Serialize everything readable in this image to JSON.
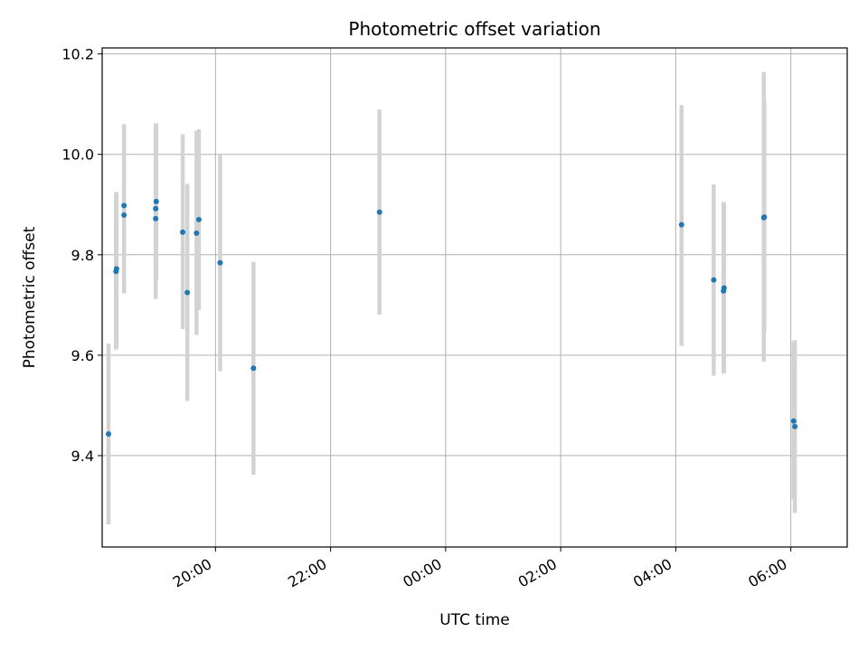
{
  "chart_data": {
    "type": "scatter",
    "title": "Photometric offset variation",
    "xlabel": "UTC time",
    "ylabel": "Photometric offset",
    "grid": true,
    "point_color": "#1f77b4",
    "errorbar_color": "#d3d3d3",
    "x_ticks": [
      {
        "t": 20.0,
        "label": "20:00"
      },
      {
        "t": 22.0,
        "label": "22:00"
      },
      {
        "t": 24.0,
        "label": "00:00"
      },
      {
        "t": 26.0,
        "label": "02:00"
      },
      {
        "t": 28.0,
        "label": "04:00"
      },
      {
        "t": 30.0,
        "label": "06:00"
      }
    ],
    "y_ticks": [
      {
        "v": 9.4,
        "label": "9.4"
      },
      {
        "v": 9.6,
        "label": "9.6"
      },
      {
        "v": 9.8,
        "label": "9.8"
      },
      {
        "v": 10.0,
        "label": "10.0"
      },
      {
        "v": 10.2,
        "label": "10.2"
      }
    ],
    "xlim": [
      18.03,
      30.98
    ],
    "ylim": [
      9.218,
      10.212
    ],
    "points": [
      {
        "t": 18.14,
        "y": 9.443,
        "lo": 9.263,
        "hi": 9.623
      },
      {
        "t": 18.27,
        "y": 9.767,
        "lo": 9.611,
        "hi": 9.924
      },
      {
        "t": 18.28,
        "y": 9.772,
        "lo": 9.615,
        "hi": 9.925
      },
      {
        "t": 18.41,
        "y": 9.879,
        "lo": 9.723,
        "hi": 10.058
      },
      {
        "t": 18.41,
        "y": 9.898,
        "lo": 9.725,
        "hi": 10.06
      },
      {
        "t": 18.96,
        "y": 9.872,
        "lo": 9.712,
        "hi": 10.061
      },
      {
        "t": 18.96,
        "y": 9.892,
        "lo": 9.75,
        "hi": 10.061
      },
      {
        "t": 18.97,
        "y": 9.906,
        "lo": 9.75,
        "hi": 10.062
      },
      {
        "t": 19.43,
        "y": 9.845,
        "lo": 9.652,
        "hi": 10.04
      },
      {
        "t": 19.51,
        "y": 9.725,
        "lo": 9.509,
        "hi": 9.941
      },
      {
        "t": 19.67,
        "y": 9.843,
        "lo": 9.64,
        "hi": 10.047
      },
      {
        "t": 19.71,
        "y": 9.87,
        "lo": 9.69,
        "hi": 10.05
      },
      {
        "t": 20.08,
        "y": 9.784,
        "lo": 9.568,
        "hi": 10.0
      },
      {
        "t": 20.66,
        "y": 9.574,
        "lo": 9.362,
        "hi": 9.786
      },
      {
        "t": 22.85,
        "y": 9.885,
        "lo": 9.681,
        "hi": 10.089
      },
      {
        "t": 28.1,
        "y": 9.86,
        "lo": 9.619,
        "hi": 10.098
      },
      {
        "t": 28.66,
        "y": 9.75,
        "lo": 9.559,
        "hi": 9.94
      },
      {
        "t": 28.83,
        "y": 9.728,
        "lo": 9.563,
        "hi": 9.905
      },
      {
        "t": 28.84,
        "y": 9.734,
        "lo": 9.565,
        "hi": 9.903
      },
      {
        "t": 29.53,
        "y": 9.874,
        "lo": 9.587,
        "hi": 10.164
      },
      {
        "t": 29.54,
        "y": 9.875,
        "lo": 9.648,
        "hi": 10.105
      },
      {
        "t": 30.05,
        "y": 9.469,
        "lo": 9.313,
        "hi": 9.628
      },
      {
        "t": 30.07,
        "y": 9.458,
        "lo": 9.286,
        "hi": 9.63
      }
    ]
  }
}
